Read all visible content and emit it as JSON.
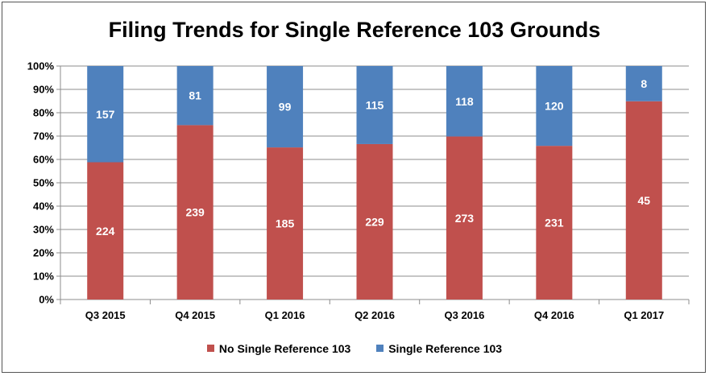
{
  "chart_data": {
    "type": "bar",
    "stacked": "percent",
    "title": "Filing Trends for Single Reference 103 Grounds",
    "xlabel": "",
    "ylabel": "",
    "categories": [
      "Q3 2015",
      "Q4 2015",
      "Q1 2016",
      "Q2 2016",
      "Q3 2016",
      "Q4 2016",
      "Q1 2017"
    ],
    "y_ticks": [
      "0%",
      "10%",
      "20%",
      "30%",
      "40%",
      "50%",
      "60%",
      "70%",
      "80%",
      "90%",
      "100%"
    ],
    "ylim": [
      0,
      100
    ],
    "grid": true,
    "legend_position": "bottom",
    "series": [
      {
        "name": "No Single Reference 103",
        "color": "#C0504D",
        "values": [
          224,
          239,
          185,
          229,
          273,
          231,
          45
        ]
      },
      {
        "name": "Single Reference 103",
        "color": "#4F81BD",
        "values": [
          157,
          81,
          99,
          115,
          118,
          120,
          8
        ]
      }
    ]
  }
}
